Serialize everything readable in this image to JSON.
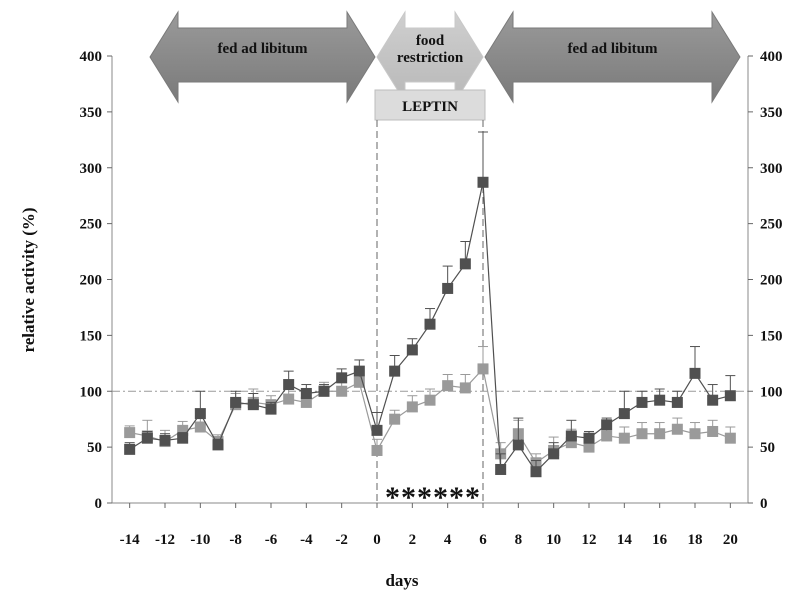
{
  "chart_data": {
    "type": "line",
    "xlabel": "days",
    "ylabel": "relative activity (%)",
    "xlim": [
      -15,
      21
    ],
    "ylim": [
      0,
      400
    ],
    "xticks": [
      -14,
      -12,
      -10,
      -8,
      -6,
      -4,
      -2,
      0,
      2,
      4,
      6,
      8,
      10,
      12,
      14,
      16,
      18,
      20
    ],
    "yticks": [
      0,
      50,
      100,
      150,
      200,
      250,
      300,
      350,
      400
    ],
    "reference_line_y": 100,
    "event_lines_x": [
      0,
      6
    ],
    "phases": [
      {
        "label": "fed ad libitum",
        "x_start": -15,
        "x_end": 0
      },
      {
        "label": "food restriction",
        "x_start": 0,
        "x_end": 6
      },
      {
        "label": "fed ad libitum",
        "x_start": 6,
        "x_end": 21
      }
    ],
    "treatment_label": "LEPTIN",
    "significance_marks": "******",
    "x": [
      -14,
      -13,
      -12,
      -11,
      -10,
      -9,
      -8,
      -7,
      -6,
      -5,
      -4,
      -3,
      -2,
      -1,
      0,
      1,
      2,
      3,
      4,
      5,
      6,
      7,
      8,
      9,
      10,
      11,
      12,
      13,
      14,
      15,
      16,
      17,
      18,
      19,
      20
    ],
    "series": [
      {
        "color": "#505050",
        "values": [
          48,
          58,
          56,
          58,
          80,
          52,
          90,
          88,
          84,
          106,
          98,
          100,
          112,
          118,
          65,
          118,
          137,
          160,
          192,
          214,
          287,
          30,
          52,
          28,
          44,
          60,
          58,
          70,
          80,
          90,
          92,
          90,
          116,
          92,
          96
        ],
        "errors": [
          6,
          6,
          6,
          5,
          20,
          5,
          10,
          10,
          6,
          12,
          8,
          6,
          8,
          10,
          16,
          14,
          10,
          14,
          20,
          20,
          45,
          14,
          24,
          10,
          10,
          14,
          6,
          6,
          20,
          10,
          10,
          10,
          24,
          14,
          18
        ]
      },
      {
        "color": "#9a9a9a",
        "values": [
          63,
          60,
          55,
          65,
          68,
          55,
          88,
          90,
          88,
          93,
          90,
          100,
          100,
          108,
          47,
          75,
          86,
          92,
          105,
          103,
          120,
          44,
          62,
          36,
          47,
          54,
          50,
          60,
          58,
          62,
          62,
          66,
          62,
          64,
          58
        ],
        "errors": [
          6,
          14,
          10,
          8,
          10,
          6,
          10,
          12,
          8,
          10,
          10,
          8,
          10,
          10,
          10,
          8,
          10,
          10,
          10,
          12,
          20,
          10,
          12,
          8,
          12,
          12,
          10,
          10,
          10,
          10,
          10,
          10,
          10,
          10,
          10
        ]
      }
    ]
  }
}
